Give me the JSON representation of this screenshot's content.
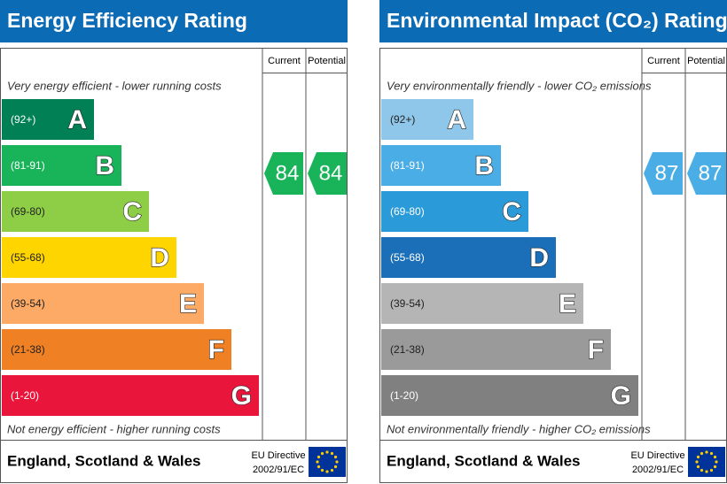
{
  "panels": [
    {
      "title": "Energy Efficiency Rating",
      "col_current": "Current",
      "col_potential": "Potential",
      "top_note": "Very energy efficient - lower running costs",
      "bottom_note": "Not energy efficient - higher running costs",
      "bands": [
        {
          "range": "(92+)",
          "letter": "A",
          "color": "#008054"
        },
        {
          "range": "(81-91)",
          "letter": "B",
          "color": "#19b459"
        },
        {
          "range": "(69-80)",
          "letter": "C",
          "color": "#8dce46"
        },
        {
          "range": "(55-68)",
          "letter": "D",
          "color": "#ffd500"
        },
        {
          "range": "(39-54)",
          "letter": "E",
          "color": "#fcaa65"
        },
        {
          "range": "(21-38)",
          "letter": "F",
          "color": "#ef8023"
        },
        {
          "range": "(1-20)",
          "letter": "G",
          "color": "#e9153b"
        }
      ],
      "current": 84,
      "potential": 84,
      "arrow_color": "#19b459",
      "footer": "England, Scotland & Wales",
      "directive": "EU Directive",
      "directive_code": "2002/91/EC"
    },
    {
      "title": "Environmental Impact (CO₂) Rating",
      "col_current": "Current",
      "col_potential": "Potential",
      "top_note": "Very environmentally friendly - lower CO₂ emissions",
      "bottom_note": "Not environmentally friendly - higher CO₂ emissions",
      "bands": [
        {
          "range": "(92+)",
          "letter": "A",
          "color": "#8fc7ea"
        },
        {
          "range": "(81-91)",
          "letter": "B",
          "color": "#4aade5"
        },
        {
          "range": "(69-80)",
          "letter": "C",
          "color": "#2a9ad8"
        },
        {
          "range": "(55-68)",
          "letter": "D",
          "color": "#1a6fb8"
        },
        {
          "range": "(39-54)",
          "letter": "E",
          "color": "#b5b5b5"
        },
        {
          "range": "(21-38)",
          "letter": "F",
          "color": "#9a9a9a"
        },
        {
          "range": "(1-20)",
          "letter": "G",
          "color": "#808080"
        }
      ],
      "current": 87,
      "potential": 87,
      "arrow_color": "#4aade5",
      "footer": "England, Scotland & Wales",
      "directive": "EU Directive",
      "directive_code": "2002/91/EC"
    }
  ]
}
